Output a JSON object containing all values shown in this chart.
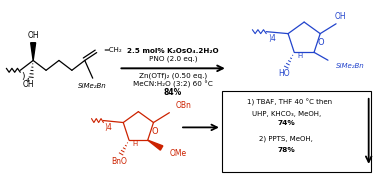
{
  "bg_color": "#ffffff",
  "black": "#000000",
  "blue": "#2244cc",
  "red": "#cc2200",
  "arrow_above1": "2.5 mol% K₂OsO₄.2H₂O",
  "arrow_above2": "PNO (2.0 eq.)",
  "arrow_below1": "Zn(OTf)₂ (0.50 eq.)",
  "arrow_below2": "MeCN:H₂O (3:2) 60 °C",
  "arrow_below3": "84%",
  "step1_line1": "1) TBAF, THF 40 °C then",
  "step1_line2": "UHP, KHCO₃, MeOH,",
  "step1_pct": "74%",
  "step2_line1": "2) PPTS, MeOH,",
  "step2_pct": "78%"
}
